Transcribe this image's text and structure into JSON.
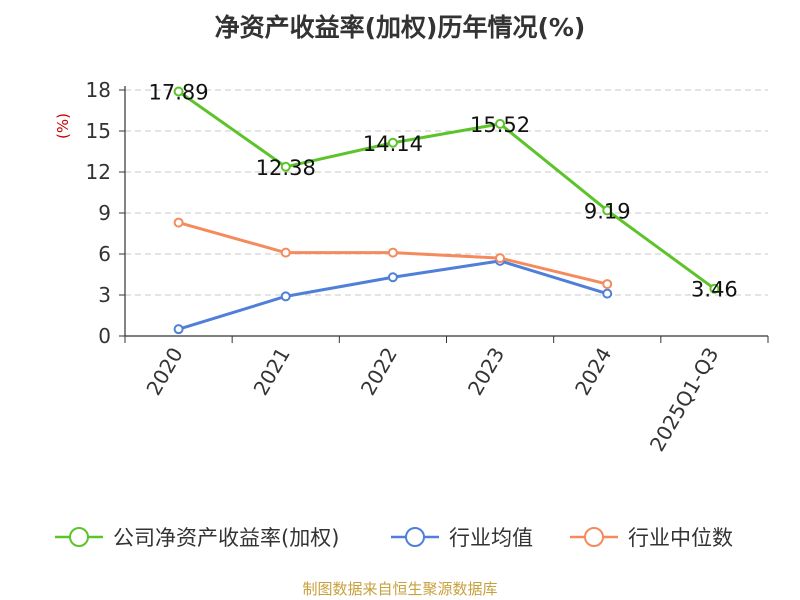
{
  "chart_data": {
    "type": "line",
    "title": "净资产收益率(加权)历年情况(%)",
    "ylabel": "(%)",
    "categories": [
      "2020",
      "2021",
      "2022",
      "2023",
      "2024",
      "2025Q1-Q3"
    ],
    "ylim": [
      0,
      18
    ],
    "yticks": [
      0,
      3,
      6,
      9,
      12,
      15,
      18
    ],
    "grid": true,
    "legend_position": "bottom",
    "series": [
      {
        "name": "公司净资产收益率(加权)",
        "color": "#5cc42a",
        "values": [
          17.89,
          12.38,
          14.14,
          15.52,
          9.19,
          3.46
        ],
        "labels": [
          "17.89",
          "12.38",
          "14.14",
          "15.52",
          "9.19",
          "3.46"
        ]
      },
      {
        "name": "行业均值",
        "color": "#4f7fd8",
        "values": [
          0.5,
          2.9,
          4.3,
          5.5,
          3.1,
          null
        ]
      },
      {
        "name": "行业中位数",
        "color": "#f58a5c",
        "values": [
          8.3,
          6.1,
          6.1,
          5.7,
          3.8,
          null
        ]
      }
    ]
  },
  "source": "制图数据来自恒生聚源数据库"
}
